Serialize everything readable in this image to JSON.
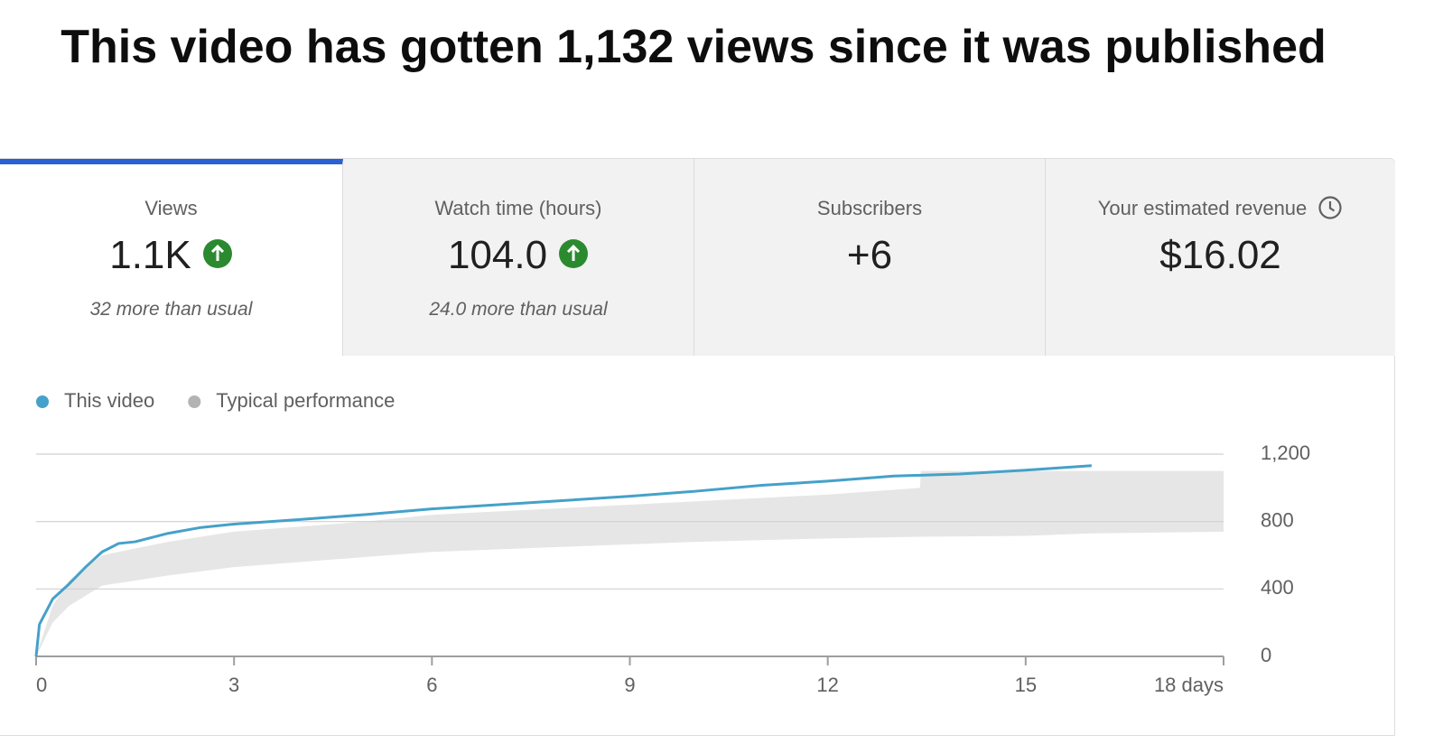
{
  "header": {
    "title": "This video has gotten 1,132 views since it was published"
  },
  "cards": [
    {
      "label": "Views",
      "value": "1.1K",
      "note": "32 more than usual"
    },
    {
      "label": "Watch time (hours)",
      "value": "104.0",
      "note": "24.0 more than usual"
    },
    {
      "label": "Subscribers",
      "value": "+6"
    },
    {
      "label": "Your estimated revenue",
      "value": "$16.02"
    }
  ],
  "chart_data": {
    "type": "line",
    "grid": true,
    "legend": "top-left",
    "xlim": [
      0,
      18
    ],
    "xticks": [
      0,
      3,
      6,
      9,
      12,
      15,
      {
        "value": 18,
        "label": "18 days"
      }
    ],
    "ylim": [
      0,
      1200
    ],
    "yticks": [
      0,
      400,
      800,
      {
        "value": 1200,
        "label": "1,200"
      }
    ],
    "series": [
      {
        "name": "This video",
        "color": "#45a1c9",
        "x": [
          0,
          0.05,
          0.25,
          0.5,
          0.75,
          1,
          1.25,
          1.5,
          2,
          2.5,
          3,
          4,
          5,
          6,
          7,
          8,
          9,
          10,
          11,
          12,
          13,
          14,
          15,
          16
        ],
        "values": [
          0,
          190,
          340,
          430,
          530,
          620,
          670,
          680,
          730,
          765,
          785,
          812,
          842,
          875,
          900,
          925,
          950,
          980,
          1015,
          1040,
          1070,
          1082,
          1105,
          1132
        ]
      },
      {
        "name": "Typical performance",
        "color": "#b3b3b3",
        "x": [
          0,
          0.25,
          0.5,
          1,
          2,
          3,
          4,
          5,
          6,
          8,
          10,
          12,
          13.4,
          13.41,
          15,
          16,
          18
        ],
        "low": [
          0,
          200,
          300,
          420,
          480,
          530,
          560,
          590,
          620,
          650,
          680,
          700,
          710,
          710,
          715,
          730,
          740
        ],
        "high": [
          0,
          300,
          450,
          600,
          680,
          740,
          770,
          800,
          840,
          880,
          920,
          960,
          1000,
          1100,
          1100,
          1100,
          1100
        ]
      }
    ]
  }
}
